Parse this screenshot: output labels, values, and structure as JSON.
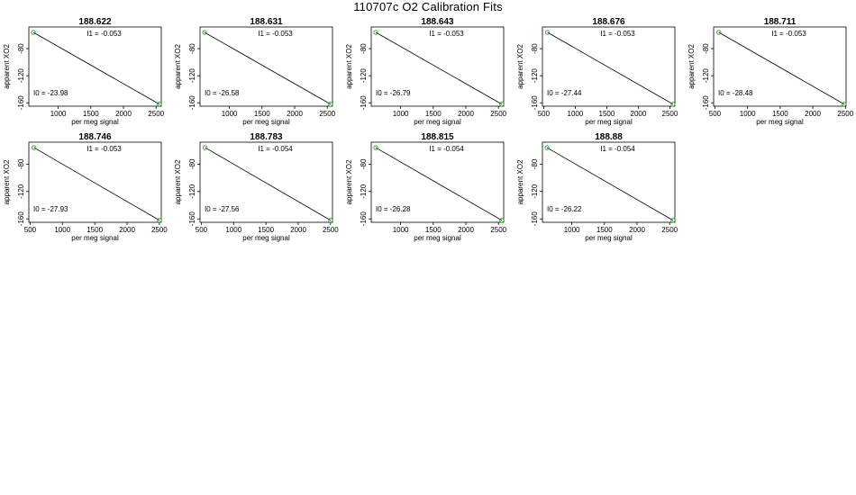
{
  "page": {
    "title": "110707c   O2 Calibration Fits"
  },
  "chart_data": [
    {
      "type": "scatter",
      "title": "188.622",
      "xlabel": "per meg signal",
      "ylabel": "apparent XO2",
      "xticks": [
        1000,
        1500,
        2000,
        2500
      ],
      "yticks": [
        -80,
        -120,
        -160
      ],
      "xlim": [
        550,
        2580
      ],
      "ylim": [
        -165,
        -48
      ],
      "points": [
        {
          "x": 620,
          "y": -56
        },
        {
          "x": 2550,
          "y": -162
        }
      ],
      "fit_line": [
        [
          620,
          -56
        ],
        [
          2550,
          -162
        ]
      ],
      "annotations": {
        "i1": "I1 =  -0.053",
        "i0": "I0 =  -23.98"
      }
    },
    {
      "type": "scatter",
      "title": "188.631",
      "xlabel": "per meg signal",
      "ylabel": "apparent XO2",
      "xticks": [
        1000,
        1500,
        2000,
        2500
      ],
      "yticks": [
        -80,
        -120,
        -160
      ],
      "xlim": [
        550,
        2580
      ],
      "ylim": [
        -165,
        -48
      ],
      "points": [
        {
          "x": 620,
          "y": -56
        },
        {
          "x": 2550,
          "y": -162
        }
      ],
      "fit_line": [
        [
          620,
          -56
        ],
        [
          2550,
          -162
        ]
      ],
      "annotations": {
        "i1": "I1 =  -0.053",
        "i0": "I0 =  -26.58"
      }
    },
    {
      "type": "scatter",
      "title": "188.643",
      "xlabel": "per meg signal",
      "ylabel": "apparent XO2",
      "xticks": [
        1000,
        1500,
        2000,
        2500
      ],
      "yticks": [
        -80,
        -120,
        -160
      ],
      "xlim": [
        550,
        2580
      ],
      "ylim": [
        -165,
        -48
      ],
      "points": [
        {
          "x": 620,
          "y": -56
        },
        {
          "x": 2550,
          "y": -162
        }
      ],
      "fit_line": [
        [
          620,
          -56
        ],
        [
          2550,
          -162
        ]
      ],
      "annotations": {
        "i1": "I1 =  -0.053",
        "i0": "I0 =  -26.79"
      }
    },
    {
      "type": "scatter",
      "title": "188.676",
      "xlabel": "per meg signal",
      "ylabel": "apparent XO2",
      "xticks": [
        500,
        1000,
        1500,
        2000,
        2500
      ],
      "yticks": [
        -80,
        -120,
        -160
      ],
      "xlim": [
        480,
        2580
      ],
      "ylim": [
        -165,
        -48
      ],
      "points": [
        {
          "x": 560,
          "y": -56
        },
        {
          "x": 2550,
          "y": -162
        }
      ],
      "fit_line": [
        [
          560,
          -56
        ],
        [
          2550,
          -162
        ]
      ],
      "annotations": {
        "i1": "I1 =  -0.053",
        "i0": "I0 =  -27.44"
      }
    },
    {
      "type": "scatter",
      "title": "188.711",
      "xlabel": "per meg signal",
      "ylabel": "apparent XO2",
      "xticks": [
        500,
        1000,
        1500,
        2000,
        2500
      ],
      "yticks": [
        -80,
        -120,
        -160
      ],
      "xlim": [
        480,
        2510
      ],
      "ylim": [
        -165,
        -48
      ],
      "points": [
        {
          "x": 560,
          "y": -56
        },
        {
          "x": 2480,
          "y": -162
        }
      ],
      "fit_line": [
        [
          560,
          -56
        ],
        [
          2480,
          -162
        ]
      ],
      "annotations": {
        "i1": "I1 =  -0.053",
        "i0": "I0 =  -28.48"
      }
    },
    {
      "type": "scatter",
      "title": "188.746",
      "xlabel": "per meg signal",
      "ylabel": "apparent XO2",
      "xticks": [
        500,
        1000,
        1500,
        2000,
        2500
      ],
      "yticks": [
        -80,
        -120,
        -160
      ],
      "xlim": [
        480,
        2530
      ],
      "ylim": [
        -165,
        -48
      ],
      "points": [
        {
          "x": 560,
          "y": -56
        },
        {
          "x": 2500,
          "y": -162
        }
      ],
      "fit_line": [
        [
          560,
          -56
        ],
        [
          2500,
          -162
        ]
      ],
      "annotations": {
        "i1": "I1 =  -0.053",
        "i0": "I0 =  -27.93"
      }
    },
    {
      "type": "scatter",
      "title": "188.783",
      "xlabel": "per meg signal",
      "ylabel": "apparent XO2",
      "xticks": [
        500,
        1000,
        1500,
        2000,
        2500
      ],
      "yticks": [
        -80,
        -120,
        -160
      ],
      "xlim": [
        480,
        2530
      ],
      "ylim": [
        -165,
        -48
      ],
      "points": [
        {
          "x": 560,
          "y": -56
        },
        {
          "x": 2500,
          "y": -162
        }
      ],
      "fit_line": [
        [
          560,
          -56
        ],
        [
          2500,
          -162
        ]
      ],
      "annotations": {
        "i1": "I1 =  -0.054",
        "i0": "I0 =  -27.56"
      }
    },
    {
      "type": "scatter",
      "title": "188.815",
      "xlabel": "per meg signal",
      "ylabel": "apparent XO2",
      "xticks": [
        1000,
        1500,
        2000,
        2500
      ],
      "yticks": [
        -80,
        -120,
        -160
      ],
      "xlim": [
        550,
        2580
      ],
      "ylim": [
        -165,
        -48
      ],
      "points": [
        {
          "x": 620,
          "y": -56
        },
        {
          "x": 2550,
          "y": -162
        }
      ],
      "fit_line": [
        [
          620,
          -56
        ],
        [
          2550,
          -162
        ]
      ],
      "annotations": {
        "i1": "I1 =  -0.054",
        "i0": "I0 =  -26.28"
      }
    },
    {
      "type": "scatter",
      "title": "188.88",
      "xlabel": "per meg signal",
      "ylabel": "apparent XO2",
      "xticks": [
        1000,
        1500,
        2000,
        2500
      ],
      "yticks": [
        -80,
        -120,
        -160
      ],
      "xlim": [
        550,
        2580
      ],
      "ylim": [
        -165,
        -48
      ],
      "points": [
        {
          "x": 620,
          "y": -56
        },
        {
          "x": 2550,
          "y": -162
        }
      ],
      "fit_line": [
        [
          620,
          -56
        ],
        [
          2550,
          -162
        ]
      ],
      "annotations": {
        "i1": "I1 =  -0.054",
        "i0": "I0 =  -26.22"
      }
    }
  ],
  "colors": {
    "point": "#2ca02c",
    "line": "#000000",
    "axis": "#000000"
  }
}
